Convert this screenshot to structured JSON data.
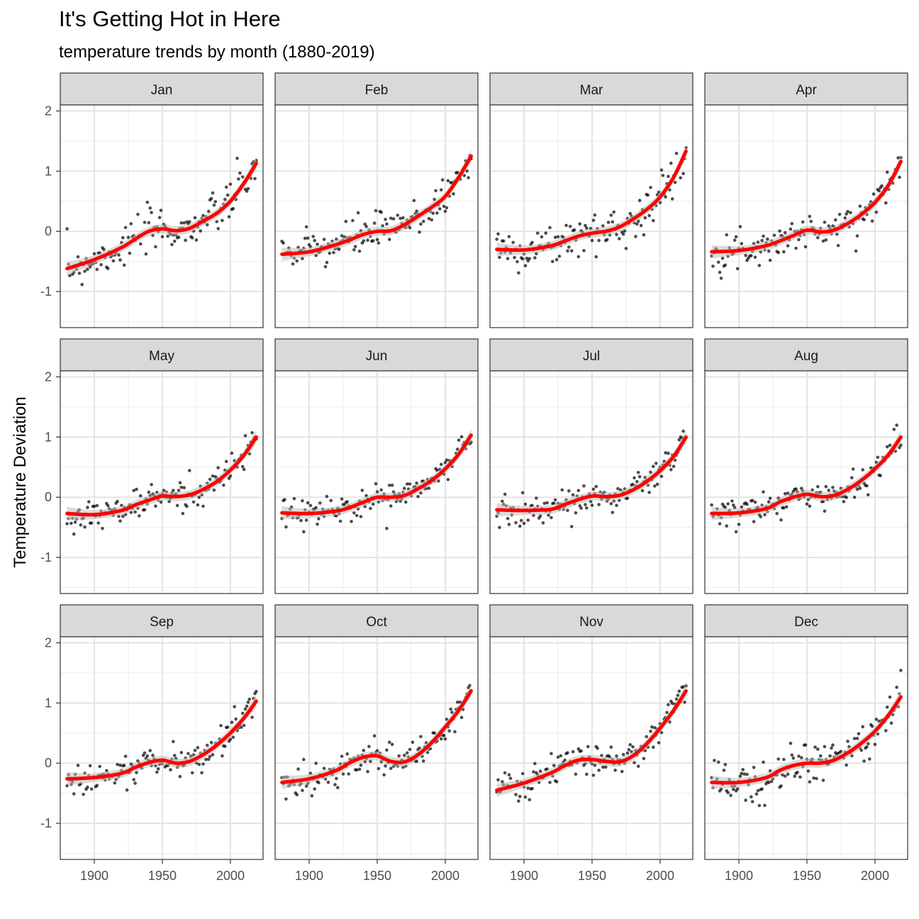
{
  "chart_data": {
    "type": "scatter",
    "title": "It's Getting Hot in Here",
    "subtitle": "temperature trends by month (1880-2019)",
    "ylabel": "Temperature Deviation",
    "xlabel": "",
    "xlim": [
      1875,
      2024
    ],
    "ylim": [
      -1.6,
      2.1
    ],
    "xticks": [
      1900,
      1950,
      2000
    ],
    "xtick_labels": [
      "1900",
      "1950",
      "2000"
    ],
    "yticks": [
      -1,
      0,
      1,
      2
    ],
    "ytick_labels": [
      "-1",
      "0",
      "1",
      "2"
    ],
    "grid": true,
    "facets": {
      "rows": 3,
      "cols": 4
    },
    "point_color": "#000000",
    "trend_color": "#ff0000",
    "band_color": "#bebebe",
    "strip_color": "#d9d9d9",
    "trend_x": [
      1880,
      1900,
      1920,
      1930,
      1940,
      1950,
      1960,
      1970,
      1980,
      1990,
      2000,
      2010,
      2019
    ],
    "panels": [
      {
        "month": "Jan",
        "trend": [
          -0.62,
          -0.47,
          -0.27,
          -0.13,
          0.0,
          0.04,
          0.01,
          0.05,
          0.17,
          0.3,
          0.5,
          0.8,
          1.13
        ]
      },
      {
        "month": "Feb",
        "trend": [
          -0.38,
          -0.34,
          -0.22,
          -0.14,
          -0.05,
          0.0,
          0.01,
          0.11,
          0.25,
          0.4,
          0.58,
          0.9,
          1.25
        ]
      },
      {
        "month": "Mar",
        "trend": [
          -0.3,
          -0.31,
          -0.24,
          -0.16,
          -0.08,
          -0.03,
          0.0,
          0.07,
          0.2,
          0.36,
          0.57,
          0.9,
          1.33
        ]
      },
      {
        "month": "Apr",
        "trend": [
          -0.34,
          -0.32,
          -0.24,
          -0.16,
          -0.07,
          0.02,
          -0.01,
          0.02,
          0.13,
          0.28,
          0.48,
          0.77,
          1.16
        ]
      },
      {
        "month": "May",
        "trend": [
          -0.27,
          -0.29,
          -0.22,
          -0.13,
          -0.05,
          0.02,
          0.01,
          0.04,
          0.13,
          0.26,
          0.45,
          0.7,
          1.0
        ]
      },
      {
        "month": "Jun",
        "trend": [
          -0.26,
          -0.27,
          -0.23,
          -0.17,
          -0.08,
          0.0,
          0.0,
          0.03,
          0.14,
          0.28,
          0.47,
          0.72,
          1.03
        ]
      },
      {
        "month": "Jul",
        "trend": [
          -0.21,
          -0.22,
          -0.2,
          -0.12,
          -0.04,
          0.02,
          0.01,
          0.03,
          0.12,
          0.26,
          0.44,
          0.68,
          1.0
        ]
      },
      {
        "month": "Aug",
        "trend": [
          -0.27,
          -0.26,
          -0.19,
          -0.08,
          0.0,
          0.05,
          0.01,
          0.03,
          0.13,
          0.28,
          0.47,
          0.71,
          1.0
        ]
      },
      {
        "month": "Sep",
        "trend": [
          -0.26,
          -0.24,
          -0.17,
          -0.07,
          0.01,
          0.05,
          0.0,
          0.03,
          0.14,
          0.3,
          0.5,
          0.75,
          1.03
        ]
      },
      {
        "month": "Oct",
        "trend": [
          -0.32,
          -0.26,
          -0.12,
          0.01,
          0.1,
          0.12,
          0.03,
          0.02,
          0.14,
          0.34,
          0.6,
          0.88,
          1.2
        ]
      },
      {
        "month": "Nov",
        "trend": [
          -0.45,
          -0.33,
          -0.16,
          -0.04,
          0.05,
          0.06,
          0.03,
          0.02,
          0.12,
          0.32,
          0.58,
          0.88,
          1.2
        ]
      },
      {
        "month": "Dec",
        "trend": [
          -0.32,
          -0.32,
          -0.24,
          -0.12,
          -0.04,
          0.0,
          0.0,
          0.05,
          0.17,
          0.33,
          0.53,
          0.8,
          1.1
        ]
      }
    ]
  }
}
